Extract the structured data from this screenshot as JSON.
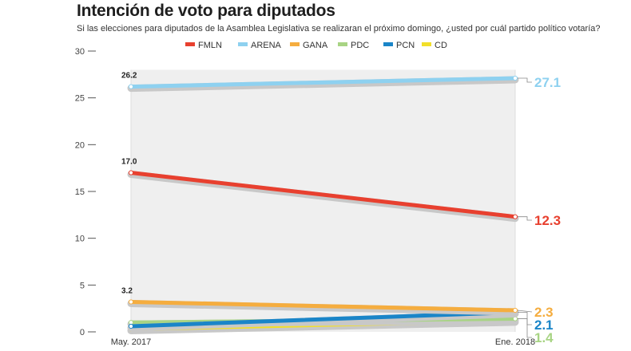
{
  "chart_data": {
    "type": "line",
    "title": "Intención de voto para diputados",
    "subtitle": "Si las elecciones para diputados de la Asamblea Legislativa se realizaran el próximo domingo, ¿usted por cuál partido político votaría?",
    "x": [
      "May. 2017",
      "Ene. 2018"
    ],
    "ylim": [
      0,
      30
    ],
    "yticks": [
      0,
      5,
      10,
      15,
      20,
      25,
      30
    ],
    "legend_position": "top",
    "grid": false,
    "series": [
      {
        "name": "FMLN",
        "values": [
          17.0,
          12.3
        ],
        "color": "#e8402f",
        "start_label": "17.0",
        "end_label": "12.3"
      },
      {
        "name": "ARENA",
        "values": [
          26.2,
          27.1
        ],
        "color": "#8ed1f0",
        "start_label": "26.2",
        "end_label": "27.1"
      },
      {
        "name": "GANA",
        "values": [
          3.2,
          2.3
        ],
        "color": "#f5ad3f",
        "start_label": "3.2",
        "end_label": "2.3"
      },
      {
        "name": "PDC",
        "values": [
          1.0,
          1.4
        ],
        "color": "#a8d484",
        "start_label": "",
        "end_label": "1.4"
      },
      {
        "name": "PCN",
        "values": [
          0.6,
          2.1
        ],
        "color": "#1a85c8",
        "start_label": "",
        "end_label": "2.1"
      },
      {
        "name": "CD",
        "values": [
          0.3,
          1.2
        ],
        "color": "#f2df2a",
        "start_label": "",
        "end_label": ""
      }
    ]
  }
}
